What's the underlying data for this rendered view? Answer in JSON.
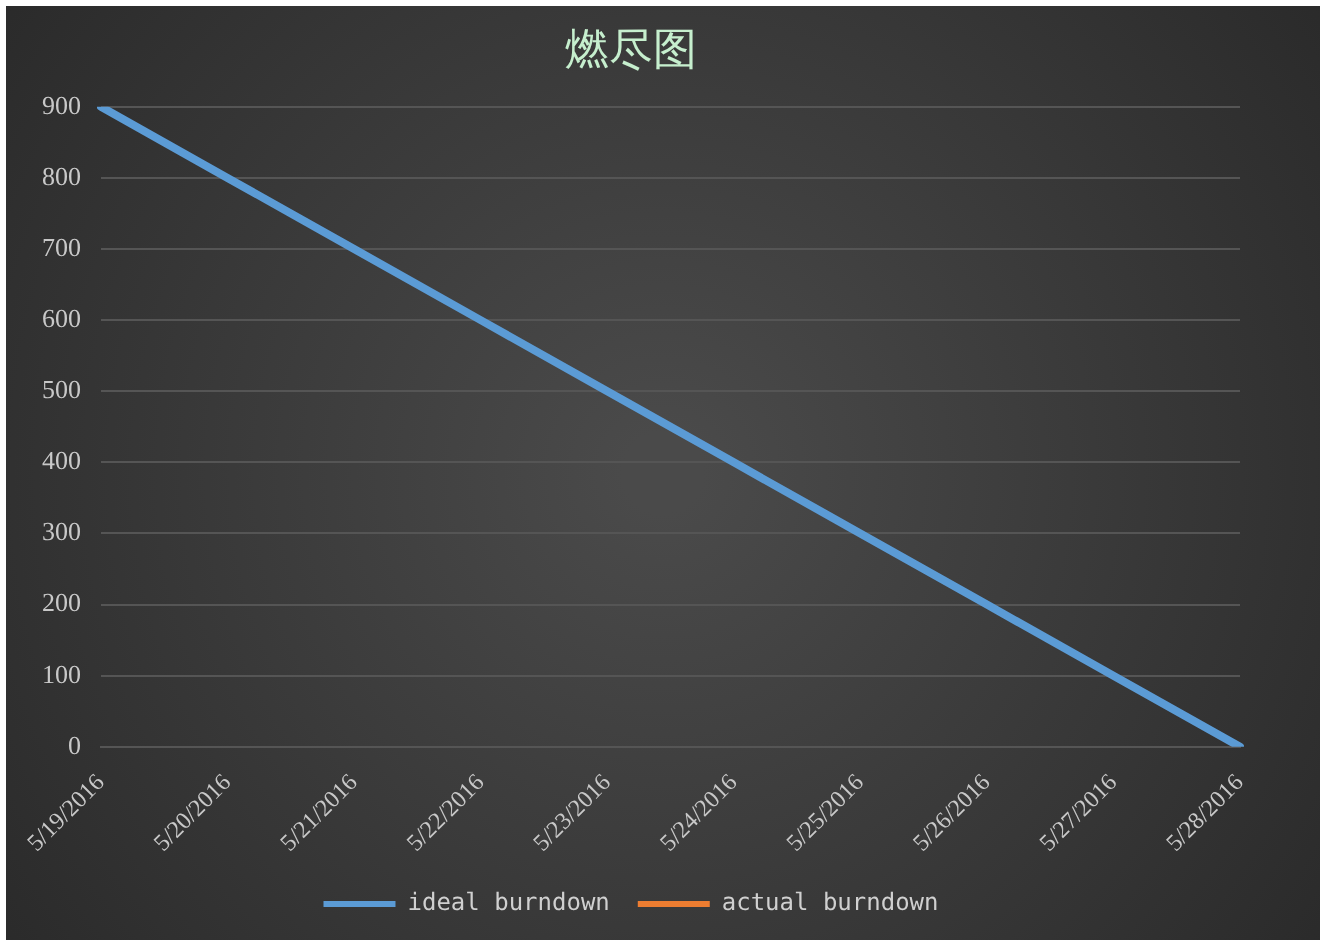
{
  "chart_data": {
    "type": "line",
    "title": "燃尽图",
    "categories": [
      "5/19/2016",
      "5/20/2016",
      "5/21/2016",
      "5/22/2016",
      "5/23/2016",
      "5/24/2016",
      "5/25/2016",
      "5/26/2016",
      "5/27/2016",
      "5/28/2016"
    ],
    "series": [
      {
        "name": "ideal burndown",
        "color": "#5b9bd5",
        "values": [
          900,
          800,
          700,
          600,
          500,
          400,
          300,
          200,
          100,
          0
        ]
      },
      {
        "name": "actual burndown",
        "color": "#ed7d31",
        "values": [
          null,
          null,
          null,
          null,
          null,
          null,
          null,
          null,
          null,
          null
        ]
      }
    ],
    "ylim": [
      0,
      900
    ],
    "yticks": [
      0,
      100,
      200,
      300,
      400,
      500,
      600,
      700,
      800,
      900
    ],
    "grid": "y",
    "legend": "bottom",
    "marker": "none",
    "line_style": "solid"
  }
}
